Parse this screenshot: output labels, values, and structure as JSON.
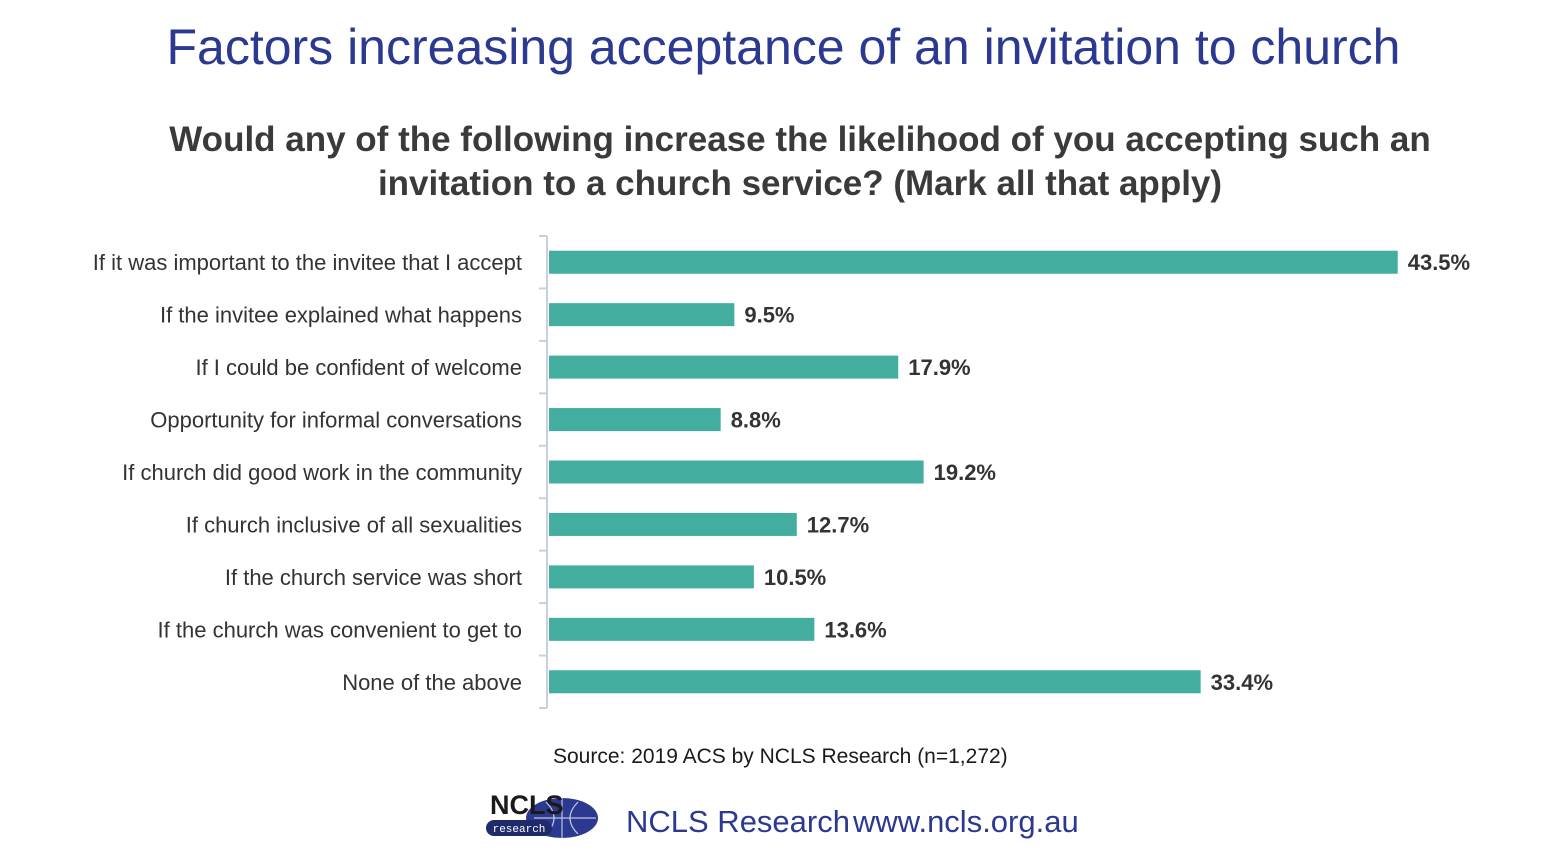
{
  "header": {
    "title": "Factors increasing acceptance of an invitation to church",
    "subtitle": "Would any of the following increase the likelihood of you accepting such an invitation to a church service? (Mark all that apply)"
  },
  "chart_data": {
    "type": "bar",
    "orientation": "horizontal",
    "categories": [
      "If it was important to the invitee that I accept",
      "If the invitee explained what happens",
      "If I could be confident of welcome",
      "Opportunity for informal conversations",
      "If church did good work in the community",
      "If church inclusive of all sexualities",
      "If the church service was short",
      "If the church was convenient to get to",
      "None of the above"
    ],
    "values": [
      43.5,
      9.5,
      17.9,
      8.8,
      19.2,
      12.7,
      10.5,
      13.6,
      33.4
    ],
    "value_labels": [
      "43.5%",
      "9.5%",
      "17.9%",
      "8.8%",
      "19.2%",
      "12.7%",
      "10.5%",
      "13.6%",
      "33.4%"
    ],
    "xlim": [
      0,
      45
    ],
    "grid": false,
    "legend": "none",
    "bar_color": "#43ae9f",
    "axis_color": "#c8d0e0"
  },
  "footer": {
    "source": "Source: 2019 ACS by NCLS Research (n=1,272)",
    "logo_text": "NCLS",
    "logo_subtext": "research",
    "org_name": "NCLS Research",
    "url": "www.ncls.org.au",
    "brand_color": "#2b3990"
  }
}
